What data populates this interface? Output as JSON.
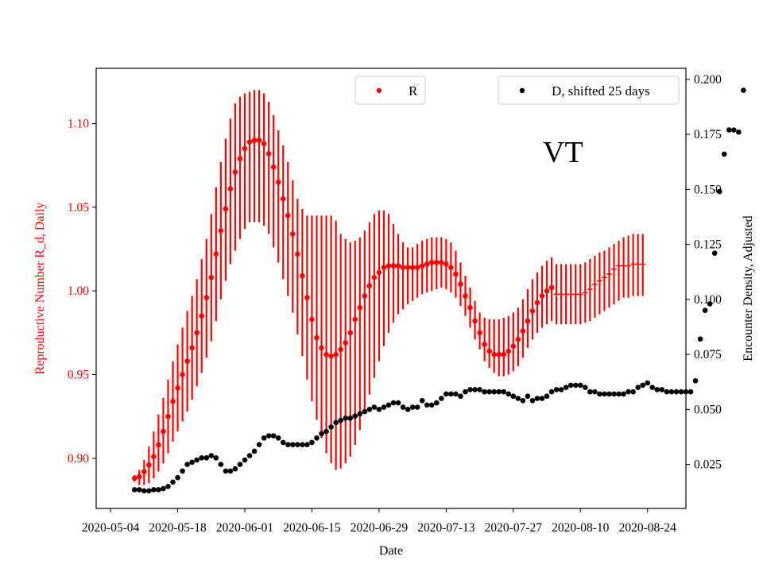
{
  "chart_data": {
    "type": "scatter",
    "state_label": "VT",
    "xlabel": "Date",
    "ylabel_left": "Reproductive Number R_d, Daily",
    "ylabel_right": "Encounter Density, Adjusted",
    "colors": {
      "R": "#ff0000",
      "D": "#000000"
    },
    "x_range": [
      "2020-05-01",
      "2020-09-01"
    ],
    "x_ticks": [
      "2020-05-04",
      "2020-05-18",
      "2020-06-01",
      "2020-06-15",
      "2020-06-29",
      "2020-07-13",
      "2020-07-27",
      "2020-08-10",
      "2020-08-24"
    ],
    "ylim_left": [
      0.87,
      1.133
    ],
    "yticks_left": [
      "0.90",
      "0.95",
      "1.00",
      "1.05",
      "1.10"
    ],
    "ylim_right": [
      0.005,
      0.205
    ],
    "yticks_right": [
      "0.025",
      "0.050",
      "0.075",
      "0.100",
      "0.125",
      "0.150",
      "0.175",
      "0.200"
    ],
    "legend_R": "R",
    "legend_D": "D, shifted 25 days",
    "R_series": {
      "name": "R",
      "start_date": "2020-05-09",
      "marker_days": 88,
      "values": [
        0.888,
        0.889,
        0.892,
        0.896,
        0.901,
        0.908,
        0.916,
        0.925,
        0.934,
        0.942,
        0.95,
        0.958,
        0.966,
        0.975,
        0.985,
        0.996,
        1.008,
        1.022,
        1.036,
        1.049,
        1.061,
        1.071,
        1.079,
        1.085,
        1.089,
        1.09,
        1.09,
        1.088,
        1.082,
        1.074,
        1.065,
        1.055,
        1.045,
        1.034,
        1.022,
        1.009,
        0.996,
        0.983,
        0.972,
        0.966,
        0.962,
        0.961,
        0.962,
        0.965,
        0.969,
        0.975,
        0.983,
        0.99,
        0.997,
        1.003,
        1.008,
        1.011,
        1.014,
        1.015,
        1.015,
        1.015,
        1.014,
        1.014,
        1.014,
        1.014,
        1.015,
        1.016,
        1.017,
        1.017,
        1.017,
        1.016,
        1.014,
        1.01,
        1.004,
        0.997,
        0.99,
        0.982,
        0.975,
        0.968,
        0.964,
        0.962,
        0.962,
        0.962,
        0.964,
        0.967,
        0.971,
        0.976,
        0.982,
        0.988,
        0.993,
        0.997,
        1.0,
        1.002,
        0.998,
        0.998,
        0.998,
        0.998,
        0.998,
        0.998,
        0.999,
        1.001,
        1.004,
        1.006,
        1.008,
        1.01,
        1.013,
        1.015,
        1.015,
        1.015,
        1.016,
        1.016,
        1.016
      ],
      "lower": [
        0.886,
        0.884,
        0.884,
        0.885,
        0.888,
        0.892,
        0.897,
        0.903,
        0.91,
        0.916,
        0.922,
        0.928,
        0.935,
        0.943,
        0.951,
        0.96,
        0.97,
        0.982,
        0.995,
        1.006,
        1.016,
        1.024,
        1.031,
        1.037,
        1.041,
        1.041,
        1.041,
        1.039,
        1.034,
        1.026,
        1.017,
        1.007,
        0.997,
        0.987,
        0.974,
        0.961,
        0.947,
        0.934,
        0.923,
        0.912,
        0.903,
        0.897,
        0.893,
        0.894,
        0.897,
        0.901,
        0.908,
        0.917,
        0.927,
        0.938,
        0.948,
        0.958,
        0.967,
        0.975,
        0.981,
        0.986,
        0.989,
        0.992,
        0.994,
        0.996,
        0.998,
        0.999,
        1.0,
        1.001,
        1.002,
        1.001,
        0.999,
        0.996,
        0.991,
        0.985,
        0.978,
        0.971,
        0.965,
        0.958,
        0.954,
        0.951,
        0.949,
        0.949,
        0.95,
        0.952,
        0.955,
        0.96,
        0.966,
        0.971,
        0.975,
        0.978,
        0.98,
        0.982,
        0.98,
        0.98,
        0.98,
        0.98,
        0.98,
        0.98,
        0.981,
        0.982,
        0.984,
        0.986,
        0.988,
        0.99,
        0.992,
        0.994,
        0.996,
        0.996,
        0.997,
        0.997,
        0.997
      ],
      "upper": [
        0.89,
        0.893,
        0.899,
        0.907,
        0.916,
        0.926,
        0.936,
        0.947,
        0.958,
        0.968,
        0.978,
        0.988,
        0.997,
        1.007,
        1.019,
        1.031,
        1.046,
        1.062,
        1.077,
        1.091,
        1.103,
        1.112,
        1.116,
        1.118,
        1.119,
        1.12,
        1.12,
        1.118,
        1.113,
        1.105,
        1.096,
        1.087,
        1.077,
        1.066,
        1.055,
        1.049,
        1.045,
        1.045,
        1.045,
        1.045,
        1.045,
        1.045,
        1.042,
        1.034,
        1.031,
        1.029,
        1.03,
        1.032,
        1.036,
        1.041,
        1.046,
        1.048,
        1.048,
        1.046,
        1.04,
        1.034,
        1.029,
        1.026,
        1.026,
        1.028,
        1.03,
        1.031,
        1.032,
        1.032,
        1.032,
        1.031,
        1.029,
        1.024,
        1.017,
        1.009,
        1.002,
        0.994,
        0.987,
        0.984,
        0.983,
        0.983,
        0.983,
        0.984,
        0.985,
        0.987,
        0.99,
        0.995,
        1.001,
        1.007,
        1.011,
        1.015,
        1.018,
        1.02,
        1.016,
        1.016,
        1.016,
        1.016,
        1.016,
        1.016,
        1.017,
        1.019,
        1.021,
        1.023,
        1.024,
        1.026,
        1.028,
        1.03,
        1.032,
        1.033,
        1.034,
        1.034,
        1.034
      ]
    },
    "D_series": {
      "name": "D, shifted 25 days",
      "start_date": "2020-05-09",
      "values": [
        0.0135,
        0.0135,
        0.013,
        0.013,
        0.0135,
        0.0135,
        0.014,
        0.015,
        0.017,
        0.019,
        0.022,
        0.025,
        0.026,
        0.027,
        0.028,
        0.028,
        0.029,
        0.028,
        0.025,
        0.022,
        0.022,
        0.023,
        0.025,
        0.027,
        0.029,
        0.031,
        0.034,
        0.037,
        0.038,
        0.038,
        0.037,
        0.035,
        0.034,
        0.034,
        0.034,
        0.034,
        0.034,
        0.035,
        0.037,
        0.039,
        0.04,
        0.042,
        0.044,
        0.045,
        0.046,
        0.046,
        0.047,
        0.048,
        0.049,
        0.05,
        0.051,
        0.05,
        0.051,
        0.052,
        0.053,
        0.053,
        0.051,
        0.05,
        0.051,
        0.051,
        0.054,
        0.052,
        0.052,
        0.053,
        0.055,
        0.057,
        0.057,
        0.057,
        0.056,
        0.058,
        0.059,
        0.059,
        0.059,
        0.058,
        0.058,
        0.058,
        0.058,
        0.058,
        0.057,
        0.056,
        0.055,
        0.054,
        0.056,
        0.054,
        0.055,
        0.055,
        0.056,
        0.058,
        0.059,
        0.059,
        0.06,
        0.061,
        0.061,
        0.061,
        0.06,
        0.058,
        0.058,
        0.057,
        0.057,
        0.057,
        0.057,
        0.057,
        0.057,
        0.058,
        0.058,
        0.06,
        0.061,
        0.062,
        0.06,
        0.059,
        0.059,
        0.058,
        0.058,
        0.058,
        0.058,
        0.058,
        0.058,
        0.063,
        0.082,
        0.095,
        0.098,
        0.121,
        0.149,
        0.166,
        0.177,
        0.177,
        0.176,
        0.195
      ]
    }
  }
}
